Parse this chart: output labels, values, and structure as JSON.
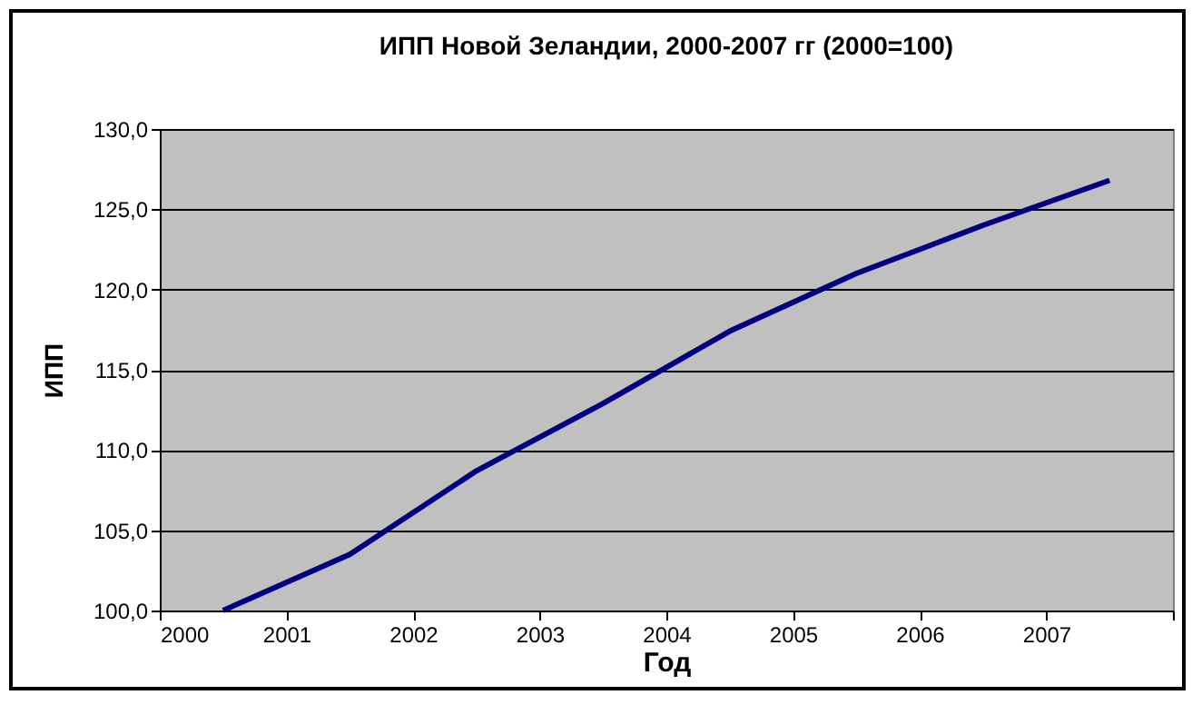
{
  "chart_data": {
    "type": "line",
    "title": "ИПП Новой Зеландии, 2000-2007 гг (2000=100)",
    "xlabel": "Год",
    "ylabel": "ИПП",
    "x": [
      2000.5,
      2001.5,
      2002.5,
      2003.5,
      2004.5,
      2005.5,
      2006.5,
      2007.5
    ],
    "series": [
      {
        "color": "#000080",
        "values": [
          100.0,
          103.5,
          108.7,
          112.9,
          117.4,
          121.0,
          124.0,
          126.8
        ]
      }
    ],
    "xlim": [
      2000,
      2008
    ],
    "xticks": [
      2000,
      2001,
      2002,
      2003,
      2004,
      2005,
      2006,
      2007,
      {
        "value": 2008,
        "label": null
      }
    ],
    "ylim": [
      100,
      130
    ],
    "yticks": [
      {
        "value": 100,
        "label": "100,0"
      },
      {
        "value": 105,
        "label": "105,0"
      },
      {
        "value": 110,
        "label": "110,0"
      },
      {
        "value": 115,
        "label": "115,0"
      },
      {
        "value": 120,
        "label": "120,0"
      },
      {
        "value": 125,
        "label": "125,0"
      },
      {
        "value": 130,
        "label": "130,0"
      }
    ],
    "grid": "y",
    "marker": "none",
    "line_style": "solid"
  }
}
